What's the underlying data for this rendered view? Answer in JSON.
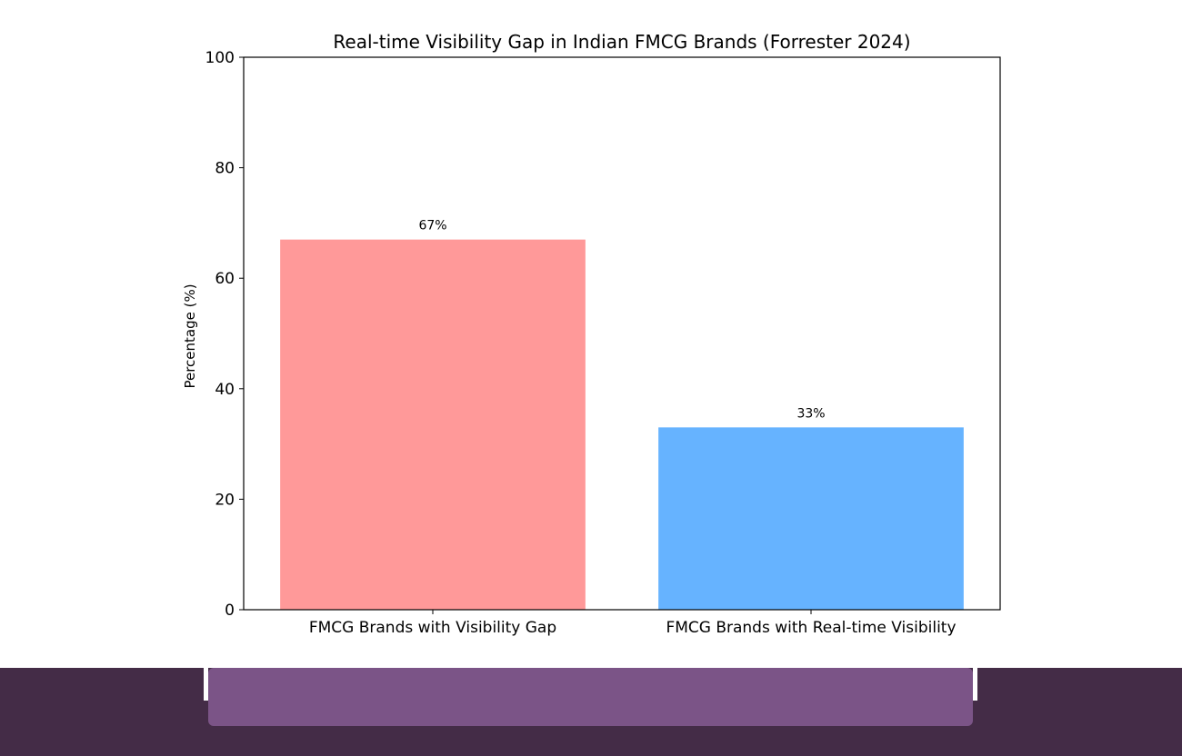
{
  "chart_data": {
    "type": "bar",
    "title": "Real-time Visibility Gap in Indian FMCG Brands (Forrester 2024)",
    "xlabel": "",
    "ylabel": "Percentage (%)",
    "categories": [
      "FMCG Brands with Visibility Gap",
      "FMCG Brands with Real-time Visibility"
    ],
    "values": [
      67,
      33
    ],
    "value_labels": [
      "67%",
      "33%"
    ],
    "colors": [
      "#ff9999",
      "#66b3ff"
    ],
    "ylim": [
      0,
      100
    ],
    "yticks": [
      0,
      20,
      40,
      60,
      80,
      100
    ],
    "grid": false,
    "legend": "none"
  },
  "footer": {
    "band_color": "#442c47",
    "bar_color": "#7b5487"
  }
}
